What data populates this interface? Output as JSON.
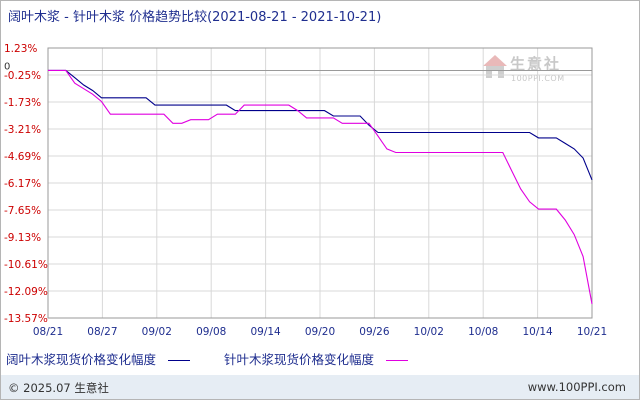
{
  "chart_data": {
    "type": "line",
    "title": "阔叶木浆 - 针叶木浆 价格趋势比较(2021-08-21 - 2021-10-21)",
    "x_tick_labels": [
      "08/21",
      "08/27",
      "09/02",
      "09/08",
      "09/14",
      "09/20",
      "09/26",
      "10/02",
      "10/08",
      "10/14",
      "10/21"
    ],
    "y_tick_labels": [
      "1.23%",
      "-0.25%",
      "-1.73%",
      "-3.21%",
      "-4.69%",
      "-6.17%",
      "-7.65%",
      "-9.13%",
      "-10.61%",
      "-12.09%",
      "-13.57%"
    ],
    "y_zero_label": "0",
    "ylim": [
      -13.57,
      1.23
    ],
    "x_range_days": [
      0,
      61
    ],
    "grid": true,
    "legend_position": "bottom",
    "series": [
      {
        "name": "阔叶木浆现货价格变化幅度",
        "color": "#00008b",
        "points": [
          [
            0,
            0
          ],
          [
            2,
            0
          ],
          [
            3,
            -0.4
          ],
          [
            4,
            -0.8
          ],
          [
            5,
            -1.1
          ],
          [
            6,
            -1.5
          ],
          [
            7,
            -1.5
          ],
          [
            8,
            -1.5
          ],
          [
            9,
            -1.5
          ],
          [
            10,
            -1.5
          ],
          [
            11,
            -1.5
          ],
          [
            12,
            -1.9
          ],
          [
            13,
            -1.9
          ],
          [
            14,
            -1.9
          ],
          [
            15,
            -1.9
          ],
          [
            16,
            -1.9
          ],
          [
            17,
            -1.9
          ],
          [
            18,
            -1.9
          ],
          [
            19,
            -1.9
          ],
          [
            20,
            -1.9
          ],
          [
            21,
            -2.2
          ],
          [
            22,
            -2.2
          ],
          [
            23,
            -2.2
          ],
          [
            24,
            -2.2
          ],
          [
            25,
            -2.2
          ],
          [
            26,
            -2.2
          ],
          [
            27,
            -2.2
          ],
          [
            28,
            -2.2
          ],
          [
            29,
            -2.2
          ],
          [
            30,
            -2.2
          ],
          [
            31,
            -2.2
          ],
          [
            32,
            -2.5
          ],
          [
            33,
            -2.5
          ],
          [
            34,
            -2.5
          ],
          [
            35,
            -2.5
          ],
          [
            36,
            -3.0
          ],
          [
            37,
            -3.4
          ],
          [
            38,
            -3.4
          ],
          [
            39,
            -3.4
          ],
          [
            40,
            -3.4
          ],
          [
            41,
            -3.4
          ],
          [
            42,
            -3.4
          ],
          [
            43,
            -3.4
          ],
          [
            44,
            -3.4
          ],
          [
            45,
            -3.4
          ],
          [
            46,
            -3.4
          ],
          [
            47,
            -3.4
          ],
          [
            48,
            -3.4
          ],
          [
            49,
            -3.4
          ],
          [
            50,
            -3.4
          ],
          [
            51,
            -3.4
          ],
          [
            52,
            -3.4
          ],
          [
            53,
            -3.4
          ],
          [
            54,
            -3.4
          ],
          [
            55,
            -3.7
          ],
          [
            56,
            -3.7
          ],
          [
            57,
            -3.7
          ],
          [
            58,
            -4.0
          ],
          [
            59,
            -4.3
          ],
          [
            60,
            -4.8
          ],
          [
            61,
            -6.0
          ]
        ]
      },
      {
        "name": "针叶木浆现货价格变化幅度",
        "color": "#e000e0",
        "points": [
          [
            0,
            0
          ],
          [
            2,
            0
          ],
          [
            3,
            -0.7
          ],
          [
            4,
            -1.0
          ],
          [
            5,
            -1.3
          ],
          [
            6,
            -1.7
          ],
          [
            7,
            -2.4
          ],
          [
            8,
            -2.4
          ],
          [
            9,
            -2.4
          ],
          [
            10,
            -2.4
          ],
          [
            11,
            -2.4
          ],
          [
            12,
            -2.4
          ],
          [
            13,
            -2.4
          ],
          [
            14,
            -2.9
          ],
          [
            15,
            -2.9
          ],
          [
            16,
            -2.7
          ],
          [
            17,
            -2.7
          ],
          [
            18,
            -2.7
          ],
          [
            19,
            -2.4
          ],
          [
            20,
            -2.4
          ],
          [
            21,
            -2.4
          ],
          [
            22,
            -1.9
          ],
          [
            23,
            -1.9
          ],
          [
            24,
            -1.9
          ],
          [
            25,
            -1.9
          ],
          [
            26,
            -1.9
          ],
          [
            27,
            -1.9
          ],
          [
            28,
            -2.2
          ],
          [
            29,
            -2.6
          ],
          [
            30,
            -2.6
          ],
          [
            31,
            -2.6
          ],
          [
            32,
            -2.6
          ],
          [
            33,
            -2.9
          ],
          [
            34,
            -2.9
          ],
          [
            35,
            -2.9
          ],
          [
            36,
            -2.9
          ],
          [
            37,
            -3.6
          ],
          [
            38,
            -4.3
          ],
          [
            39,
            -4.5
          ],
          [
            40,
            -4.5
          ],
          [
            41,
            -4.5
          ],
          [
            42,
            -4.5
          ],
          [
            43,
            -4.5
          ],
          [
            44,
            -4.5
          ],
          [
            45,
            -4.5
          ],
          [
            46,
            -4.5
          ],
          [
            47,
            -4.5
          ],
          [
            48,
            -4.5
          ],
          [
            49,
            -4.5
          ],
          [
            50,
            -4.5
          ],
          [
            51,
            -4.5
          ],
          [
            52,
            -5.5
          ],
          [
            53,
            -6.5
          ],
          [
            54,
            -7.2
          ],
          [
            55,
            -7.6
          ],
          [
            56,
            -7.6
          ],
          [
            57,
            -7.6
          ],
          [
            58,
            -8.2
          ],
          [
            59,
            -9.0
          ],
          [
            60,
            -10.2
          ],
          [
            61,
            -12.8
          ]
        ]
      }
    ]
  },
  "watermark": {
    "brand": "生意社",
    "url": "100PPI.COM"
  },
  "footer": {
    "left": "© 2025.07 生意社",
    "right": "www.100PPI.com"
  }
}
